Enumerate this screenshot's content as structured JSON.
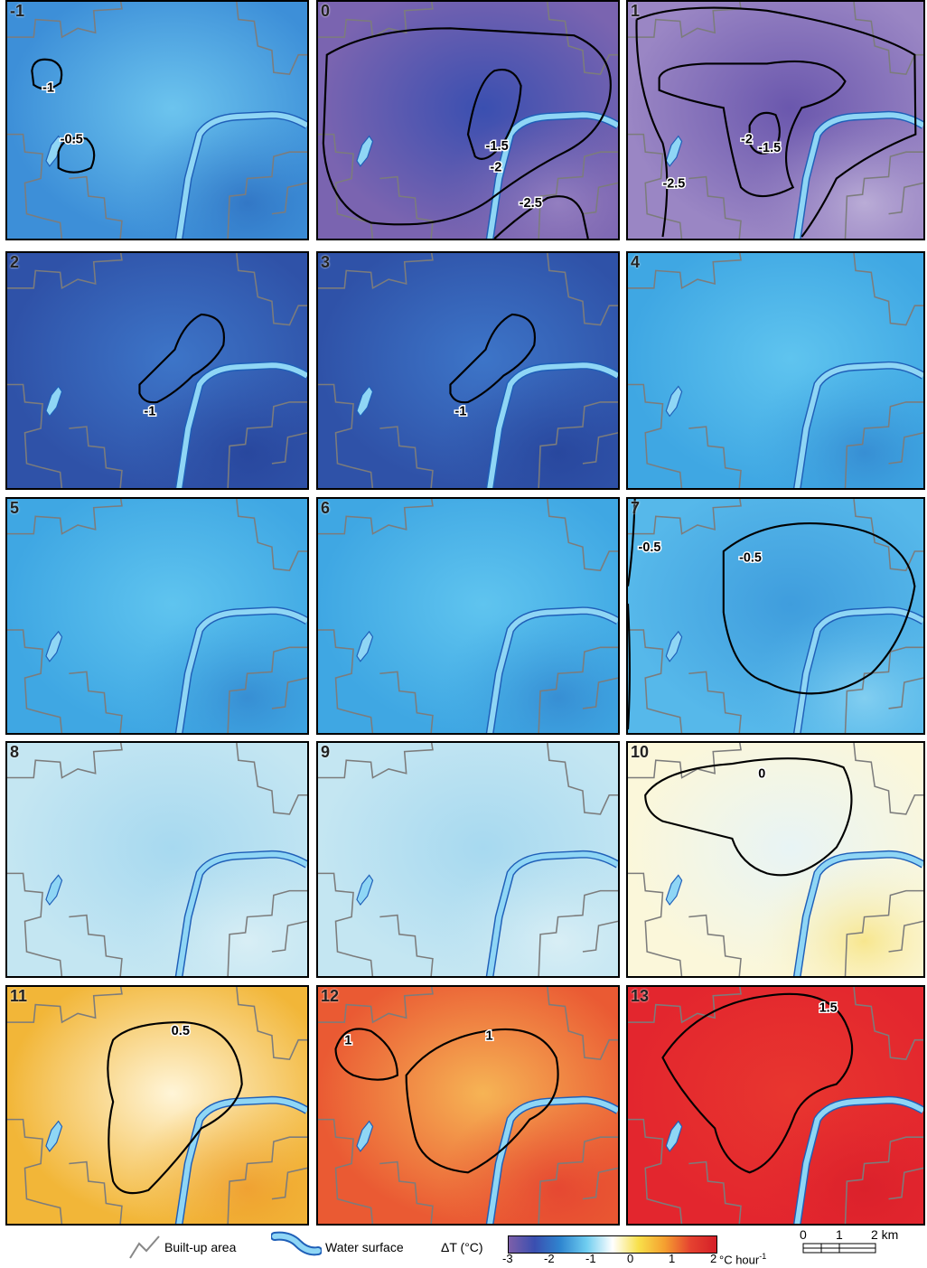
{
  "panels": [
    {
      "label": "-1",
      "theme": "d1",
      "contours": [
        {
          "label": "-1"
        },
        {
          "label": "-0.5"
        }
      ]
    },
    {
      "label": "0",
      "theme": "d2",
      "contours": [
        {
          "label": "-1.5"
        },
        {
          "label": "-2"
        },
        {
          "label": "-2.5"
        }
      ]
    },
    {
      "label": "1",
      "theme": "d3",
      "contours": [
        {
          "label": "-1.5"
        },
        {
          "label": "-2"
        },
        {
          "label": "-2.5"
        }
      ]
    },
    {
      "label": "2",
      "theme": "d4",
      "contours": [
        {
          "label": "-1"
        }
      ]
    },
    {
      "label": "3",
      "theme": "d4",
      "contours": [
        {
          "label": "-1"
        }
      ]
    },
    {
      "label": "4",
      "theme": "m1",
      "contours": []
    },
    {
      "label": "5",
      "theme": "m1",
      "contours": []
    },
    {
      "label": "6",
      "theme": "m1",
      "contours": []
    },
    {
      "label": "7",
      "theme": "m2",
      "contours": [
        {
          "label": "-0.5"
        },
        {
          "label": "-0.5"
        }
      ]
    },
    {
      "label": "8",
      "theme": "l1",
      "contours": []
    },
    {
      "label": "9",
      "theme": "l1",
      "contours": []
    },
    {
      "label": "10",
      "theme": "l2",
      "contours": [
        {
          "label": "0"
        }
      ]
    },
    {
      "label": "11",
      "theme": "w1",
      "contours": [
        {
          "label": "0.5"
        }
      ]
    },
    {
      "label": "12",
      "theme": "w2",
      "contours": [
        {
          "label": "1"
        },
        {
          "label": "1"
        }
      ]
    },
    {
      "label": "13",
      "theme": "w3",
      "contours": [
        {
          "label": "1.5"
        }
      ]
    }
  ],
  "themes": {
    "d1": {
      "bg": "#3d8fd8",
      "c1": "#6cc4ee",
      "c2": "#2e6fc0"
    },
    "d2": {
      "bg": "#7a64b0",
      "c1": "#3a4fb0",
      "c2": "#9c86c4"
    },
    "d3": {
      "bg": "#9a86c4",
      "c1": "#6a57ad",
      "c2": "#c4b8dc"
    },
    "d4": {
      "bg": "#2f52a8",
      "c1": "#3d75c8",
      "c2": "#26439a"
    },
    "m1": {
      "bg": "#3fa7e3",
      "c1": "#5fc4ef",
      "c2": "#3487cf"
    },
    "m2": {
      "bg": "#56b8ea",
      "c1": "#3f9ddd",
      "c2": "#8ed5f3"
    },
    "l1": {
      "bg": "#c4e6f2",
      "c1": "#a7d9f0",
      "c2": "#dff1f6"
    },
    "l2": {
      "bg": "#fbf7da",
      "c1": "#e8f4f5",
      "c2": "#f7e27a"
    },
    "w1": {
      "bg": "#f2b638",
      "c1": "#fff5d8",
      "c2": "#ee9a2b"
    },
    "w2": {
      "bg": "#ea5a33",
      "c1": "#f6b455",
      "c2": "#e44030"
    },
    "w3": {
      "bg": "#e3262e",
      "c1": "#e8362f",
      "c2": "#d81f2a"
    }
  },
  "legend": {
    "builtup_label": "Built-up area",
    "water_label": "Water surface",
    "colorbar_title": "ΔT (°C)",
    "colorbar_ticks": [
      "-3",
      "-2",
      "-1",
      "0",
      "1",
      "2"
    ],
    "colorbar_unit": "°C hour",
    "colorbar_unit_sup": "-1",
    "colorbar_colors": [
      "#7d5fa9",
      "#3a4fb0",
      "#2f86d0",
      "#6fcdf0",
      "#ffffff",
      "#f8e04a",
      "#f5a030",
      "#e54230",
      "#d51f28"
    ],
    "scale_ticks": [
      "0",
      "1",
      "2 km"
    ],
    "builtup_color": "#888888",
    "water_color": "#8fd6f5",
    "water_edge": "#1f5fb8"
  }
}
